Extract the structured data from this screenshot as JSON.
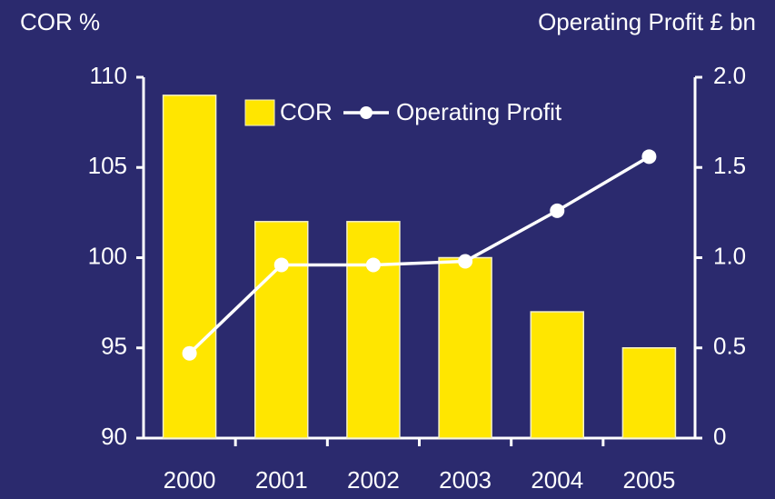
{
  "chart_data": {
    "type": "bar_line",
    "y_axis_label": "COR %",
    "y2_axis_label": "Operating Profit £ bn",
    "categories": [
      "2000",
      "2001",
      "2002",
      "2003",
      "2004",
      "2005"
    ],
    "series": [
      {
        "name": "COR",
        "type": "bar",
        "color": "#ffe600",
        "values": [
          109,
          102,
          102,
          100,
          97,
          95
        ]
      },
      {
        "name": "Operating Profit",
        "type": "line",
        "axis": "y2",
        "color": "#ffffff",
        "values": [
          0.47,
          0.96,
          0.96,
          0.98,
          1.26,
          1.56
        ]
      }
    ],
    "ylim": [
      90,
      110
    ],
    "yticks": [
      90,
      95,
      100,
      105,
      110
    ],
    "y2lim": [
      0,
      2
    ],
    "y2ticks": [
      0,
      0.5,
      {
        "value": 1,
        "label": "1.0"
      },
      1.5,
      {
        "value": 2,
        "label": "2.0"
      }
    ],
    "legend": "top"
  }
}
